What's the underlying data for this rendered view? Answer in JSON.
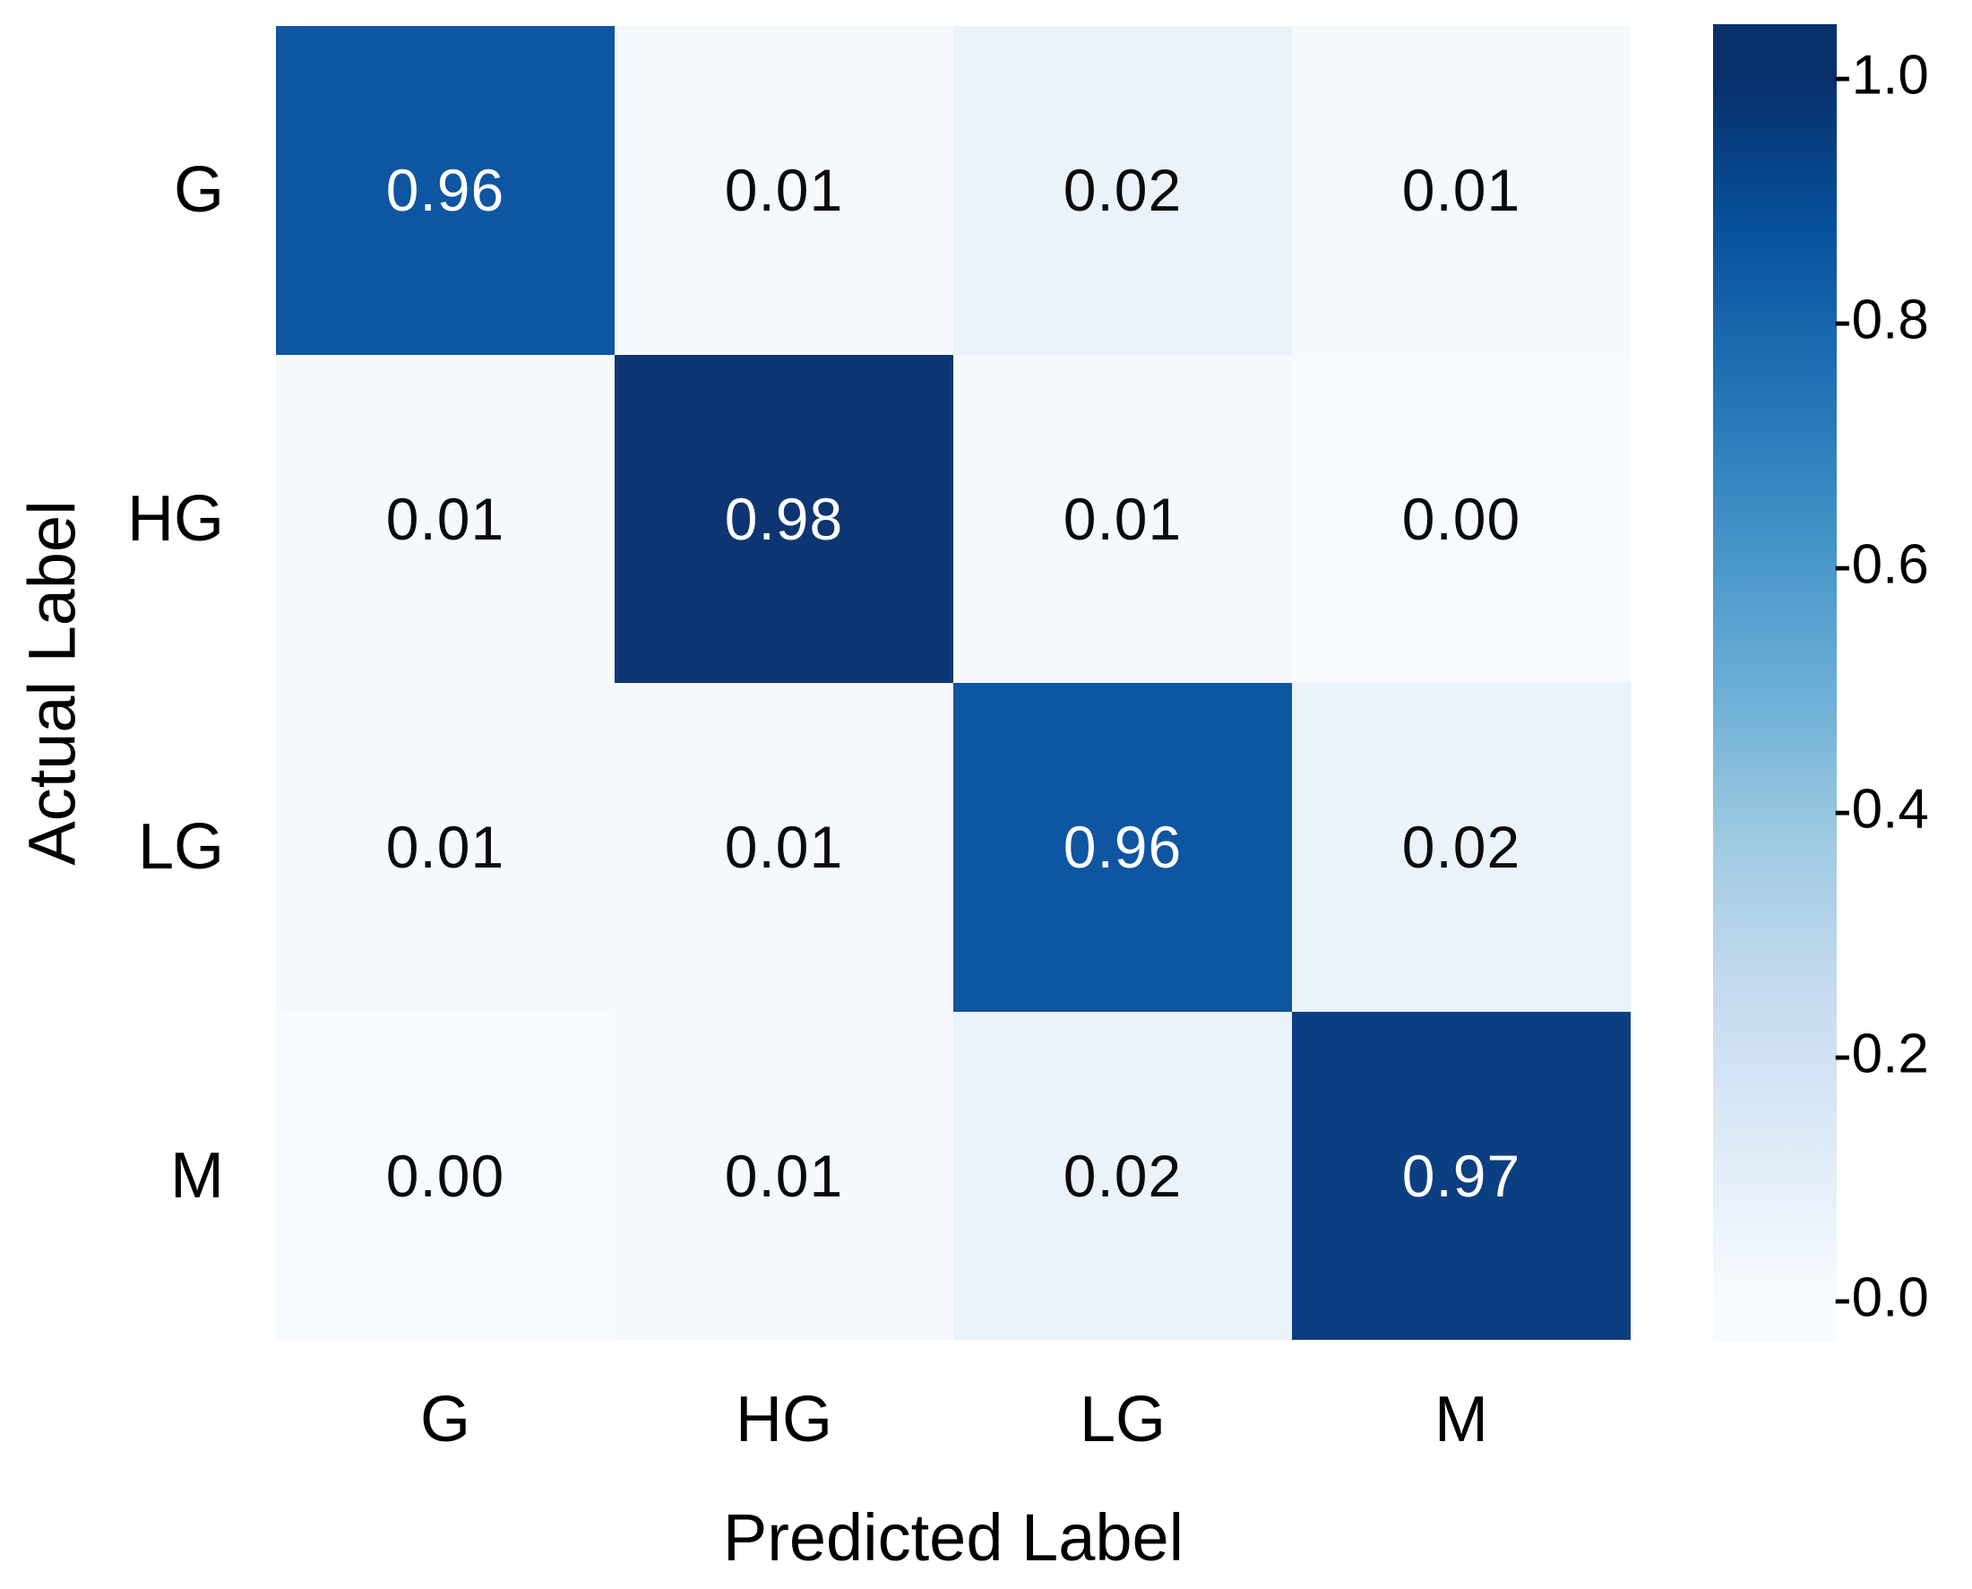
{
  "chart_data": {
    "type": "heatmap",
    "title": "",
    "xlabel": "Predicted Label",
    "ylabel": "Actual Label",
    "x_categories": [
      "G",
      "HG",
      "LG",
      "M"
    ],
    "y_categories": [
      "G",
      "HG",
      "LG",
      "M"
    ],
    "matrix": [
      [
        0.96,
        0.01,
        0.02,
        0.01
      ],
      [
        0.01,
        0.98,
        0.01,
        0.0
      ],
      [
        0.01,
        0.01,
        0.96,
        0.02
      ],
      [
        0.0,
        0.01,
        0.02,
        0.97
      ]
    ],
    "value_format": "0.00",
    "legend_position": "right",
    "grid": false,
    "colorbar": {
      "cmap": "Blues",
      "range": [
        0.0,
        1.0
      ],
      "ticks": [
        "-1.0",
        "-0.8",
        "-0.6",
        "-0.4",
        "-0.2",
        "-0.0"
      ]
    },
    "palette": {
      "0.00": "#f7fbff",
      "0.01": "#f5f9fe",
      "0.02": "#eaf2fa",
      "0.96": "#0e55a2",
      "0.97": "#0c3e82",
      "0.98": "#0d3572"
    },
    "text_colors": {
      "diagonal": "#ffffff",
      "offdiagonal": "#0a0a0a"
    }
  }
}
